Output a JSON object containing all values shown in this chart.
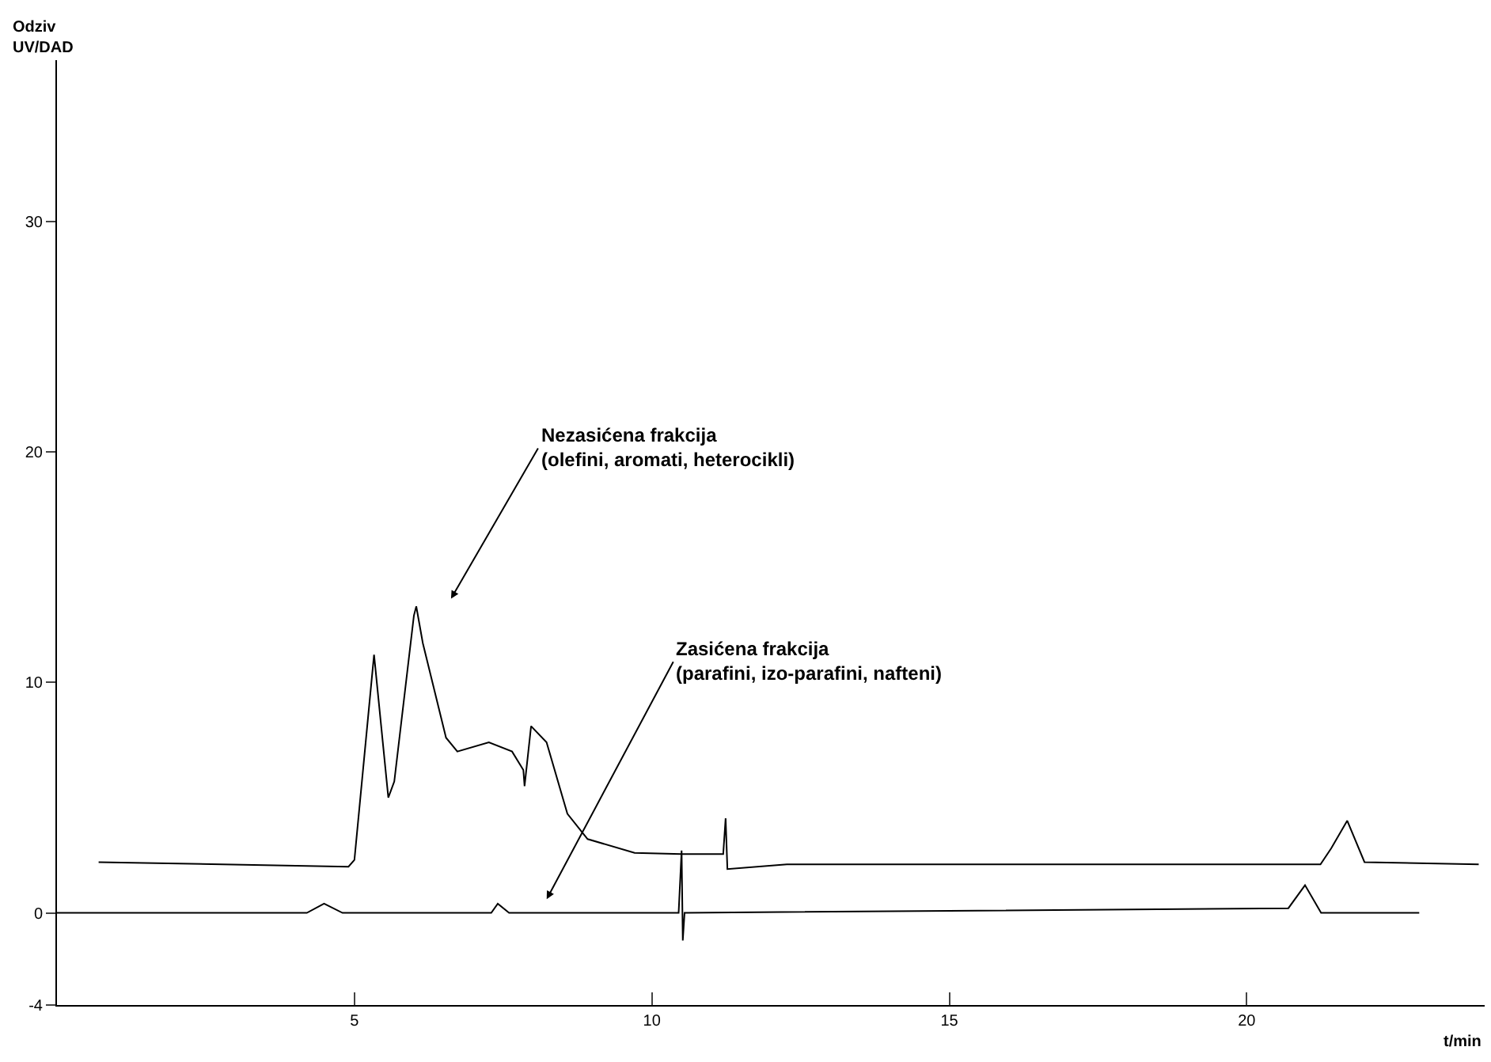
{
  "chart_data": {
    "type": "line",
    "xlabel": "t/min",
    "ylabel": "Odziv\nUV/DAD",
    "xlim": [
      0,
      24
    ],
    "ylim": [
      -4,
      37
    ],
    "xticks": [
      5,
      10,
      15,
      20
    ],
    "yticks": [
      -4,
      0,
      10,
      20,
      30
    ],
    "marker": "none",
    "line_style": "solid",
    "series": [
      {
        "color": "#000000",
        "x": [
          0.7,
          4.9,
          5.0,
          5.33,
          5.57,
          5.67,
          6.0,
          6.04,
          6.15,
          6.54,
          6.73,
          7.26,
          7.65,
          7.84,
          7.86,
          7.97,
          8.23,
          8.58,
          8.92,
          9.71,
          10.5,
          11.2,
          11.24,
          11.27,
          12.27,
          21.24,
          21.42,
          21.69,
          21.98,
          23.9
        ],
        "values": [
          2.2,
          2.0,
          2.3,
          11.2,
          5.0,
          5.7,
          12.9,
          13.3,
          11.7,
          7.6,
          7.0,
          7.4,
          7.0,
          6.2,
          5.5,
          8.1,
          7.4,
          4.3,
          3.2,
          2.6,
          2.55,
          2.55,
          4.1,
          1.9,
          2.1,
          2.1,
          2.8,
          4.0,
          2.2,
          2.1
        ]
      },
      {
        "color": "#000000",
        "x": [
          0,
          4.2,
          4.49,
          4.8,
          7.3,
          7.41,
          7.6,
          10.45,
          10.5,
          10.52,
          10.55,
          20.7,
          20.98,
          21.25,
          22.9
        ],
        "values": [
          0,
          0,
          0.4,
          0,
          0,
          0.4,
          0,
          0,
          2.7,
          -1.2,
          0,
          0.2,
          1.2,
          0,
          0
        ]
      }
    ],
    "annotations": [
      "Nezasićena frakcija\n(olefini, aromati, heterocikli)",
      "Zasićena frakcija\n(parafini, izo-parafini, nafteni)"
    ]
  }
}
